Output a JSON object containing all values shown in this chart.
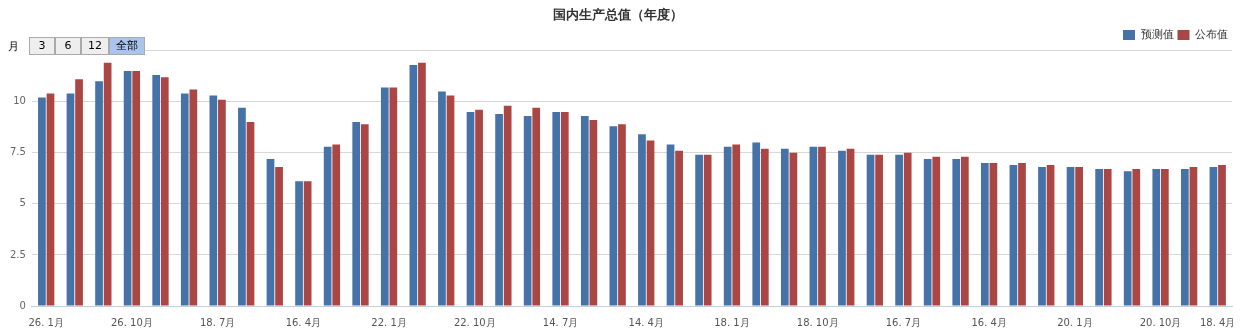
{
  "chart_data": {
    "type": "bar",
    "title": "国内生产总值（年度）",
    "categories": [
      "26. 1月",
      null,
      null,
      "26. 10月",
      null,
      null,
      "18. 7月",
      null,
      null,
      "16. 4月",
      null,
      null,
      "22. 1月",
      null,
      null,
      "22. 10月",
      null,
      null,
      "14. 7月",
      null,
      null,
      "14. 4月",
      null,
      null,
      "18. 1月",
      null,
      null,
      "18. 10月",
      null,
      null,
      "16. 7月",
      null,
      null,
      "16. 4月",
      null,
      null,
      "20. 1月",
      null,
      null,
      "20. 10月",
      null,
      "18. 4月"
    ],
    "series": [
      {
        "name": "预测值",
        "color": "#4572a7",
        "values": [
          10.2,
          10.4,
          11.0,
          11.5,
          11.3,
          10.4,
          10.3,
          9.7,
          7.2,
          6.1,
          7.8,
          9.0,
          10.7,
          11.8,
          10.5,
          9.5,
          9.4,
          9.3,
          9.5,
          9.3,
          8.8,
          8.4,
          7.9,
          7.4,
          7.8,
          8.0,
          7.7,
          7.8,
          7.6,
          7.4,
          7.4,
          7.2,
          7.2,
          7.0,
          6.9,
          6.8,
          6.8,
          6.7,
          6.6,
          6.7,
          6.7,
          6.8
        ]
      },
      {
        "name": "公布值",
        "color": "#aa4643",
        "values": [
          10.4,
          11.1,
          11.9,
          11.5,
          11.2,
          10.6,
          10.1,
          9.0,
          6.8,
          6.1,
          7.9,
          8.9,
          10.7,
          11.9,
          10.3,
          9.6,
          9.8,
          9.7,
          9.5,
          9.1,
          8.9,
          8.1,
          7.6,
          7.4,
          7.9,
          7.7,
          7.5,
          7.8,
          7.7,
          7.4,
          7.5,
          7.3,
          7.3,
          7.0,
          7.0,
          6.9,
          6.8,
          6.7,
          6.7,
          6.7,
          6.8,
          6.9
        ]
      }
    ],
    "ylim": [
      0,
      12.5
    ],
    "yticks": [
      0,
      2.5,
      5,
      7.5,
      10,
      {
        "value": 12.5,
        "label": null
      }
    ],
    "grid": "y",
    "legend": "top right",
    "annotations": [
      "月",
      "3",
      "6",
      "12",
      "全部"
    ]
  }
}
